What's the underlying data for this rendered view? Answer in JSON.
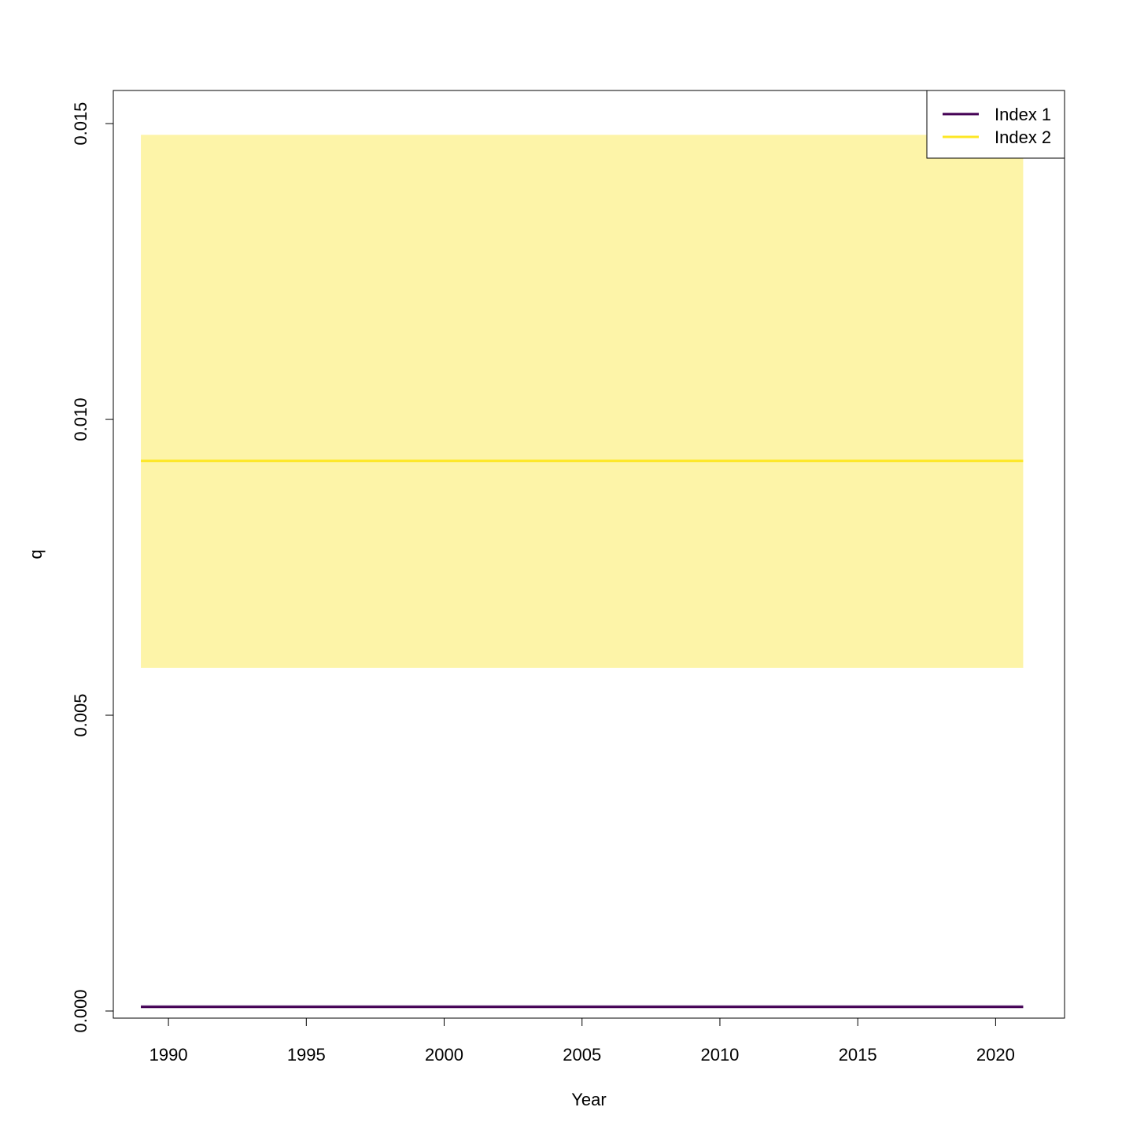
{
  "chart_data": {
    "type": "line",
    "title": "",
    "xlabel": "Year",
    "ylabel": "q",
    "xlim": [
      1988.0,
      2022.5
    ],
    "ylim": [
      -0.00012,
      0.01556
    ],
    "x_ticks": [
      1990,
      1995,
      2000,
      2005,
      2010,
      2015,
      2020
    ],
    "x_tick_labels": [
      "1990",
      "1995",
      "2000",
      "2005",
      "2010",
      "2015",
      "2020"
    ],
    "y_ticks": [
      0.0,
      0.005,
      0.01,
      0.015
    ],
    "y_tick_labels": [
      "0.000",
      "0.005",
      "0.010",
      "0.015"
    ],
    "grid": false,
    "legend_position": "top-right",
    "x": [
      1989,
      2021
    ],
    "series": [
      {
        "name": "Index 1",
        "color": "#440154",
        "band_color": "#b9a6c9",
        "values": [
          7e-05,
          7e-05
        ],
        "lower": [
          6e-05,
          6e-05
        ],
        "upper": [
          0.0001,
          0.0001
        ]
      },
      {
        "name": "Index 2",
        "color": "#FDE725",
        "band_color": "#FDF4A8",
        "values": [
          0.0093,
          0.0093
        ],
        "lower": [
          0.0058,
          0.0058
        ],
        "upper": [
          0.01481,
          0.01481
        ]
      }
    ]
  }
}
